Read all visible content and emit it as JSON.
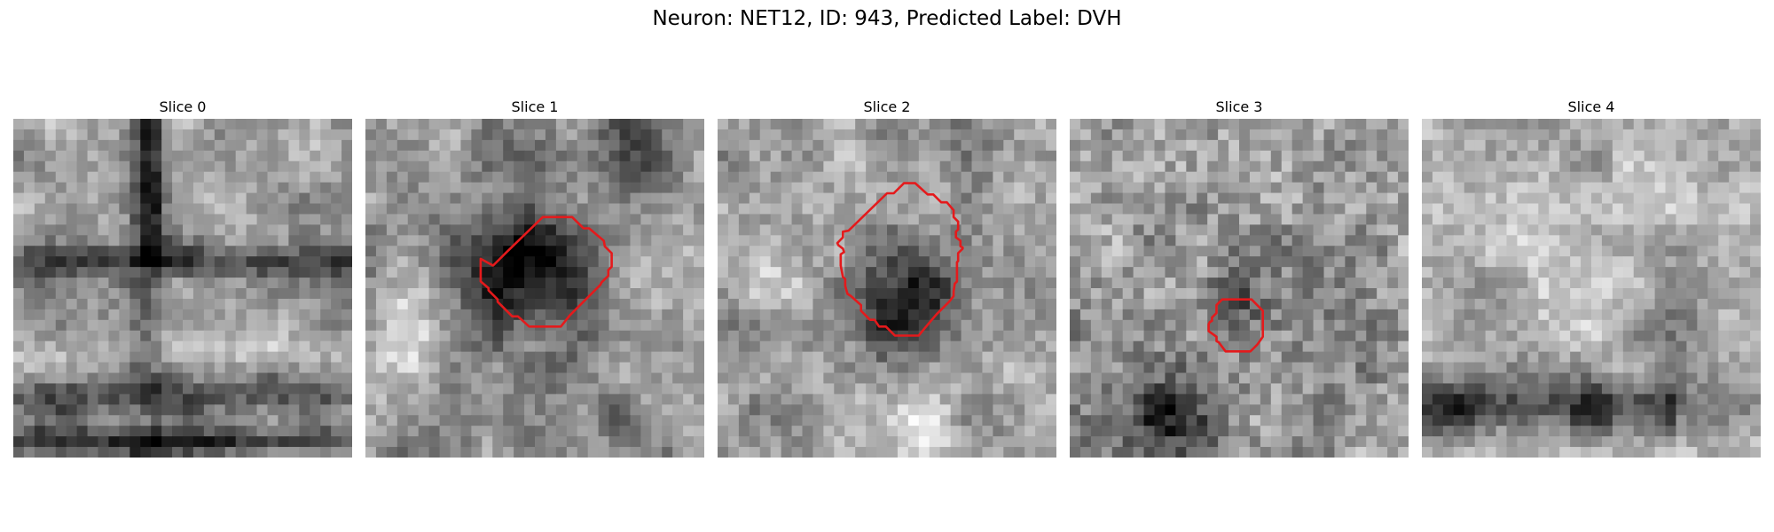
{
  "figure": {
    "title": "Neuron: NET12, ID: 943, Predicted Label: DVH"
  },
  "slices": [
    {
      "label": "Slice 0",
      "contour": null
    },
    {
      "label": "Slice 1",
      "contour": "red-outline"
    },
    {
      "label": "Slice 2",
      "contour": "red-outline"
    },
    {
      "label": "Slice 3",
      "contour": "red-outline"
    },
    {
      "label": "Slice 4",
      "contour": null
    }
  ],
  "colors": {
    "contour": "#e41a1c",
    "background": "#ffffff"
  }
}
